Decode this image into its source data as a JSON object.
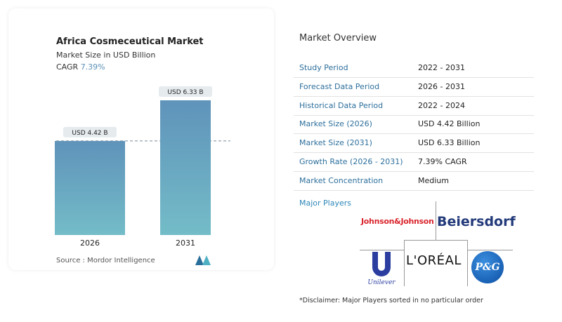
{
  "chart": {
    "title": "Africa Cosmeceutical Market",
    "subtitle": "Market Size in USD Billion",
    "cagr_label": "CAGR",
    "cagr_value": "7.39%",
    "source": "Source :  Mordor Intelligence"
  },
  "chart_data": {
    "type": "bar",
    "categories": [
      "2026",
      "2031"
    ],
    "values": [
      4.42,
      6.33
    ],
    "data_labels": [
      "USD 4.42 B",
      "USD 6.33 B"
    ],
    "title": "Africa Cosmeceutical Market",
    "ylabel": "Market Size in USD Billion",
    "ylim": [
      0,
      6.33
    ],
    "grid": false,
    "bar_color": "#5f96bb"
  },
  "overview": {
    "title": "Market Overview",
    "rows": [
      {
        "label": "Study Period",
        "value": "2022 - 2031"
      },
      {
        "label": "Forecast Data Period",
        "value": "2026 - 2031"
      },
      {
        "label": "Historical Data Period",
        "value": "2022 - 2024"
      },
      {
        "label": "Market Size (2026)",
        "value": "USD 4.42 Billion"
      },
      {
        "label": "Market Size (2031)",
        "value": "USD 6.33 Billion"
      },
      {
        "label": "Growth Rate (2026 - 2031)",
        "value": "7.39% CAGR"
      },
      {
        "label": "Market Concentration",
        "value": "Medium"
      }
    ]
  },
  "players": {
    "title": "Major Players",
    "names": [
      "Johnson&Johnson",
      "Beiersdorf",
      "Unilever",
      "L'ORÉAL",
      "P&G"
    ],
    "disclaimer": "*Disclaimer: Major Players sorted in no particular order"
  }
}
